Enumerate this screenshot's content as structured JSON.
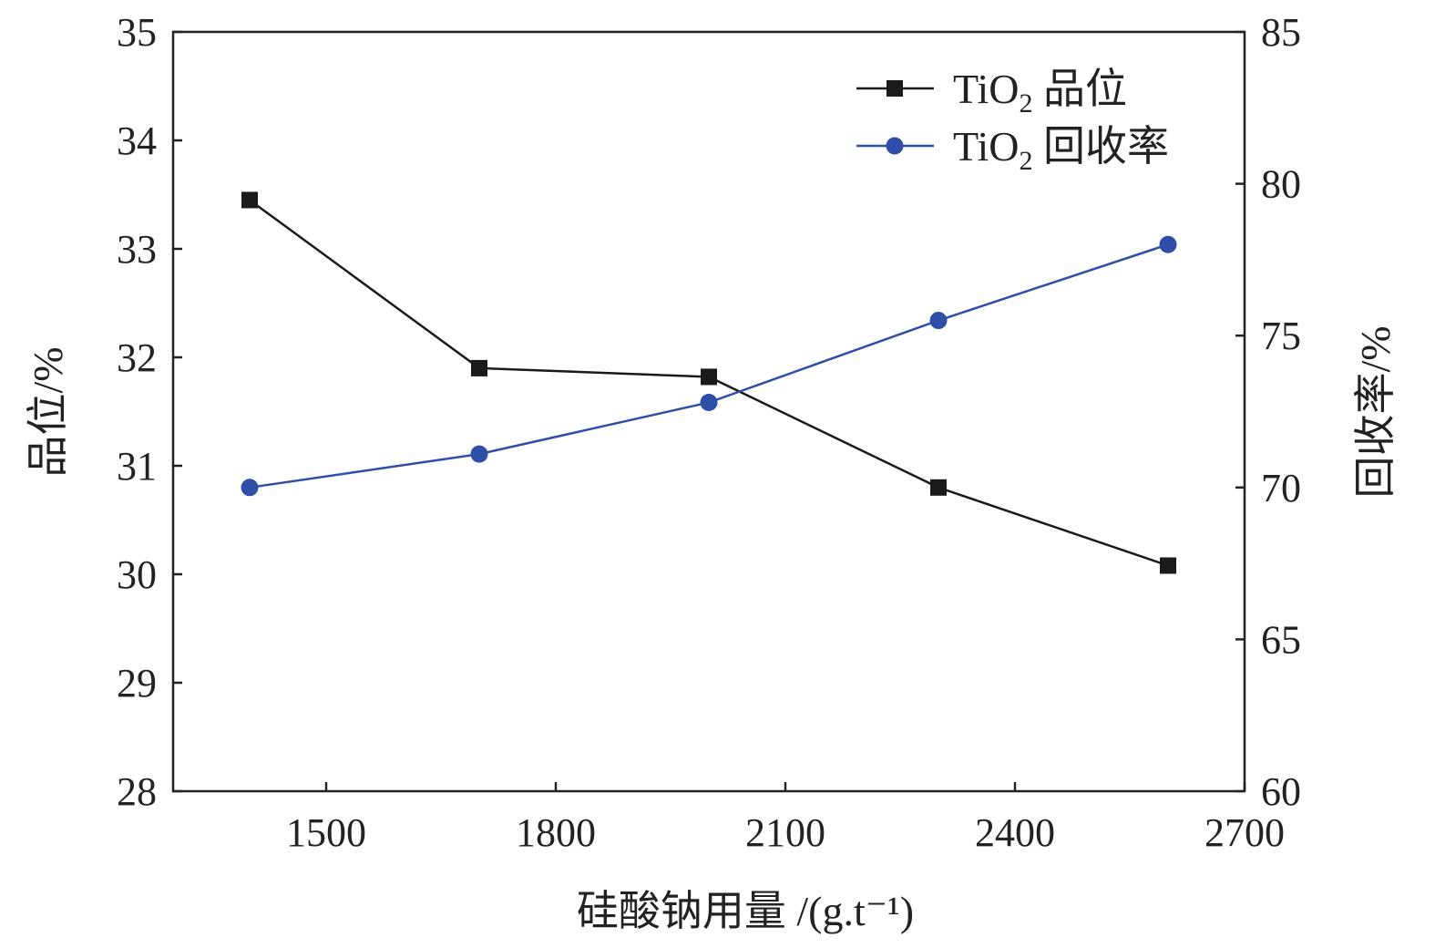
{
  "chart_data": {
    "type": "line",
    "xlabel": "硅酸钠用量 /(g.t⁻¹)",
    "ylabel_left": "品位/%",
    "ylabel_right": "回收率/%",
    "x": [
      1400,
      1700,
      2000,
      2300,
      2600
    ],
    "xlim": [
      1300,
      2700
    ],
    "xticks": [
      1500,
      1800,
      2100,
      2400,
      2700
    ],
    "ylim_left": [
      28,
      35
    ],
    "yticks_left": [
      28,
      29,
      30,
      31,
      32,
      33,
      34,
      35
    ],
    "ylim_right": [
      60,
      85
    ],
    "yticks_right": [
      60,
      65,
      70,
      75,
      80,
      85
    ],
    "grid": false,
    "legend_placement": "top-right",
    "series": [
      {
        "name": "TiO₂ 品位",
        "legend_main": "TiO",
        "legend_sub": "2",
        "legend_tail": " 品位",
        "axis": "left",
        "color": "#1a1a1a",
        "marker": "square",
        "values": [
          33.45,
          31.9,
          31.82,
          30.8,
          30.08
        ]
      },
      {
        "name": "TiO₂ 回收率",
        "legend_main": "TiO",
        "legend_sub": "2",
        "legend_tail": " 回收率",
        "axis": "right",
        "color": "#2f4ea8",
        "marker": "circle",
        "values": [
          70.0,
          71.1,
          72.8,
          75.5,
          78.0
        ]
      }
    ]
  }
}
